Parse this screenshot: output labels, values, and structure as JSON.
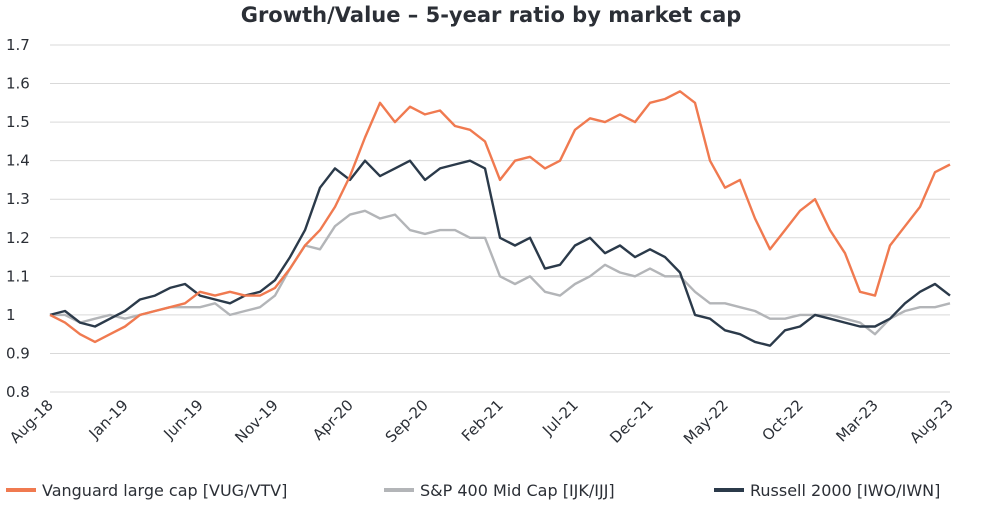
{
  "chart_data": {
    "type": "line",
    "title": "Growth/Value – 5-year ratio by market cap",
    "xlabel": "",
    "ylabel": "",
    "ylim": [
      0.8,
      1.7
    ],
    "yticks": [
      "0.8",
      "0.9",
      "1",
      "1.1",
      "1.2",
      "1.3",
      "1.4",
      "1.5",
      "1.6",
      "1.7"
    ],
    "xticks": [
      "Aug-18",
      "Jan-19",
      "Jun-19",
      "Nov-19",
      "Apr-20",
      "Sep-20",
      "Feb-21",
      "Jul-21",
      "Dec-21",
      "May-22",
      "Oct-22",
      "Mar-23",
      "Aug-23"
    ],
    "grid": true,
    "legend_position": "bottom",
    "series": [
      {
        "name": "Vanguard large cap [VUG/VTV]",
        "color": "#f07a50",
        "x": [
          0,
          1,
          2,
          3,
          4,
          5,
          6,
          7,
          8,
          9,
          10,
          11,
          12,
          13,
          14,
          15,
          16,
          17,
          18,
          19,
          20,
          21,
          22,
          23,
          24,
          25,
          26,
          27,
          28,
          29,
          30,
          31,
          32,
          33,
          34,
          35,
          36,
          37,
          38,
          39,
          40,
          41,
          42,
          43,
          44,
          45,
          46,
          47,
          48,
          49,
          50,
          51,
          52,
          53,
          54,
          55,
          56,
          57,
          58,
          59,
          60
        ],
        "values": [
          1.0,
          0.98,
          0.95,
          0.93,
          0.95,
          0.97,
          1.0,
          1.01,
          1.02,
          1.03,
          1.06,
          1.05,
          1.06,
          1.05,
          1.05,
          1.07,
          1.12,
          1.18,
          1.22,
          1.28,
          1.36,
          1.46,
          1.55,
          1.5,
          1.54,
          1.52,
          1.53,
          1.49,
          1.48,
          1.45,
          1.35,
          1.4,
          1.41,
          1.38,
          1.4,
          1.48,
          1.51,
          1.5,
          1.52,
          1.5,
          1.55,
          1.56,
          1.58,
          1.55,
          1.4,
          1.33,
          1.35,
          1.25,
          1.17,
          1.22,
          1.27,
          1.3,
          1.22,
          1.16,
          1.06,
          1.05,
          1.18,
          1.23,
          1.28,
          1.37,
          1.39
        ]
      },
      {
        "name": "S&P 400 Mid Cap [IJK/IJJ]",
        "color": "#b3b5b8",
        "x": [
          0,
          1,
          2,
          3,
          4,
          5,
          6,
          7,
          8,
          9,
          10,
          11,
          12,
          13,
          14,
          15,
          16,
          17,
          18,
          19,
          20,
          21,
          22,
          23,
          24,
          25,
          26,
          27,
          28,
          29,
          30,
          31,
          32,
          33,
          34,
          35,
          36,
          37,
          38,
          39,
          40,
          41,
          42,
          43,
          44,
          45,
          46,
          47,
          48,
          49,
          50,
          51,
          52,
          53,
          54,
          55,
          56,
          57,
          58,
          59,
          60
        ],
        "values": [
          1.0,
          1.0,
          0.98,
          0.99,
          1.0,
          0.99,
          1.0,
          1.01,
          1.02,
          1.02,
          1.02,
          1.03,
          1.0,
          1.01,
          1.02,
          1.05,
          1.12,
          1.18,
          1.17,
          1.23,
          1.26,
          1.27,
          1.25,
          1.26,
          1.22,
          1.21,
          1.22,
          1.22,
          1.2,
          1.2,
          1.1,
          1.08,
          1.1,
          1.06,
          1.05,
          1.08,
          1.1,
          1.13,
          1.11,
          1.1,
          1.12,
          1.1,
          1.1,
          1.06,
          1.03,
          1.03,
          1.02,
          1.01,
          0.99,
          0.99,
          1.0,
          1.0,
          1.0,
          0.99,
          0.98,
          0.95,
          0.99,
          1.01,
          1.02,
          1.02,
          1.03
        ]
      },
      {
        "name": "Russell 2000 [IWO/IWN]",
        "color": "#2b3a4a",
        "x": [
          0,
          1,
          2,
          3,
          4,
          5,
          6,
          7,
          8,
          9,
          10,
          11,
          12,
          13,
          14,
          15,
          16,
          17,
          18,
          19,
          20,
          21,
          22,
          23,
          24,
          25,
          26,
          27,
          28,
          29,
          30,
          31,
          32,
          33,
          34,
          35,
          36,
          37,
          38,
          39,
          40,
          41,
          42,
          43,
          44,
          45,
          46,
          47,
          48,
          49,
          50,
          51,
          52,
          53,
          54,
          55,
          56,
          57,
          58,
          59,
          60
        ],
        "values": [
          1.0,
          1.01,
          0.98,
          0.97,
          0.99,
          1.01,
          1.04,
          1.05,
          1.07,
          1.08,
          1.05,
          1.04,
          1.03,
          1.05,
          1.06,
          1.09,
          1.15,
          1.22,
          1.33,
          1.38,
          1.35,
          1.4,
          1.36,
          1.38,
          1.4,
          1.35,
          1.38,
          1.39,
          1.4,
          1.38,
          1.2,
          1.18,
          1.2,
          1.12,
          1.13,
          1.18,
          1.2,
          1.16,
          1.18,
          1.15,
          1.17,
          1.15,
          1.11,
          1.0,
          0.99,
          0.96,
          0.95,
          0.93,
          0.92,
          0.96,
          0.97,
          1.0,
          0.99,
          0.98,
          0.97,
          0.97,
          0.99,
          1.03,
          1.06,
          1.08,
          1.05
        ]
      }
    ]
  }
}
